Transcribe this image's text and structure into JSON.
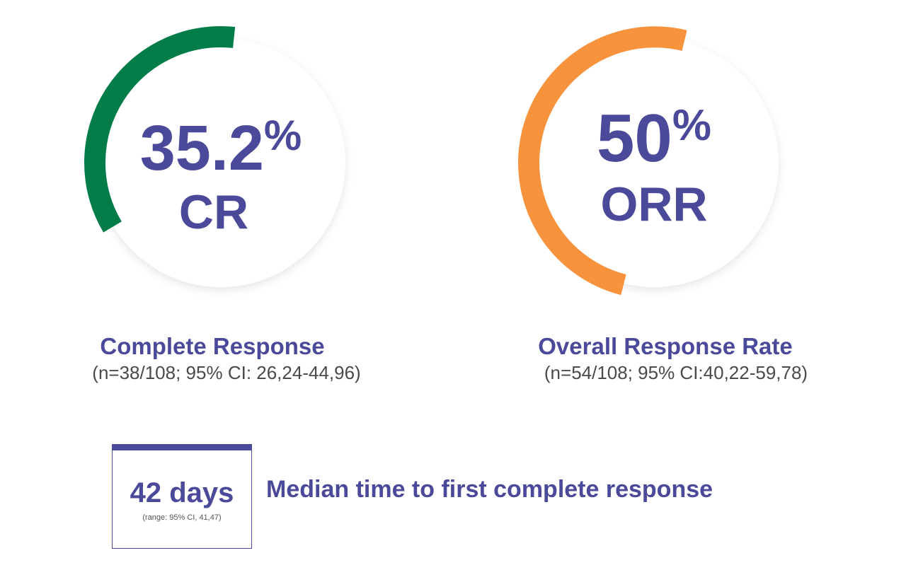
{
  "colors": {
    "text_primary": "#4b4999",
    "cr_arc": "#027d49",
    "orr_arc": "#f7923d",
    "circle_fill": "#ffffff",
    "circle_shadow": "#e8e8ea"
  },
  "chart_data": [
    {
      "type": "gauge",
      "value_percent": 35.2,
      "value_number": "35.2",
      "value_unit": "%",
      "abbreviation": "CR",
      "label": "Complete Response",
      "detail": "(n=38/108; 95% CI: 26,24-44,96)",
      "color": "#027d49"
    },
    {
      "type": "gauge",
      "value_percent": 50,
      "value_number": "50",
      "value_unit": "%",
      "abbreviation": "ORR",
      "label": "Overall Response Rate",
      "detail": "(n=54/108; 95% CI:40,22-59,78)",
      "color": "#f7923d"
    }
  ],
  "median": {
    "value": "42 days",
    "range": "(range: 95% CI, 41,47)",
    "label": "Median time to first complete response"
  }
}
